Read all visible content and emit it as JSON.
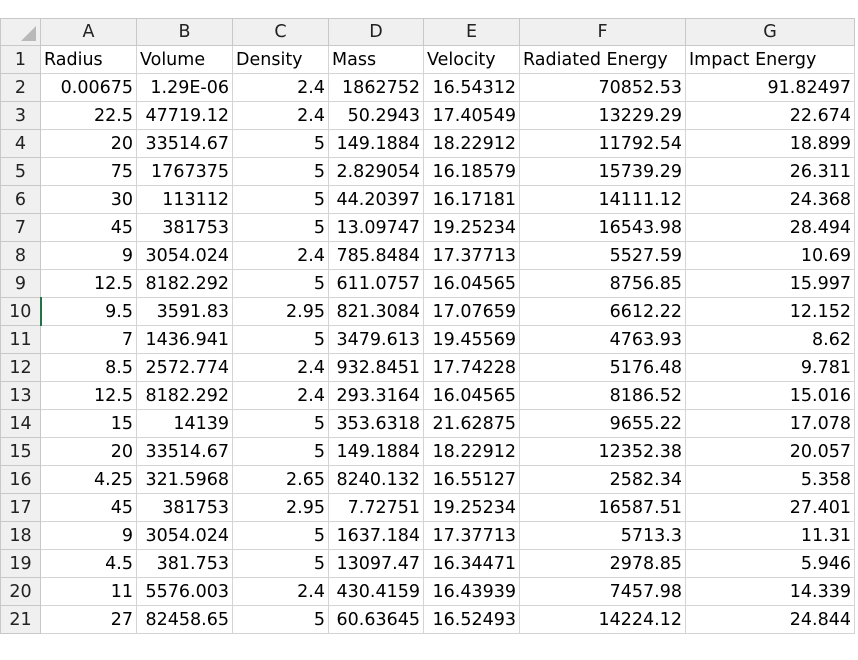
{
  "sheet": {
    "column_headers": [
      "A",
      "B",
      "C",
      "D",
      "E",
      "F",
      "G"
    ],
    "header_row": {
      "row": "1",
      "cells": [
        "Radius",
        "Volume",
        "Density",
        "Mass",
        "Velocity",
        "Radiated Energy",
        "Impact Energy"
      ]
    },
    "rows": [
      {
        "row": "2",
        "cells": [
          "0.00675",
          "1.29E-06",
          "2.4",
          "1862752",
          "16.54312",
          "70852.53",
          "91.82497"
        ]
      },
      {
        "row": "3",
        "cells": [
          "22.5",
          "47719.12",
          "2.4",
          "50.2943",
          "17.40549",
          "13229.29",
          "22.674"
        ]
      },
      {
        "row": "4",
        "cells": [
          "20",
          "33514.67",
          "5",
          "149.1884",
          "18.22912",
          "11792.54",
          "18.899"
        ]
      },
      {
        "row": "5",
        "cells": [
          "75",
          "1767375",
          "5",
          "2.829054",
          "16.18579",
          "15739.29",
          "26.311"
        ]
      },
      {
        "row": "6",
        "cells": [
          "30",
          "113112",
          "5",
          "44.20397",
          "16.17181",
          "14111.12",
          "24.368"
        ]
      },
      {
        "row": "7",
        "cells": [
          "45",
          "381753",
          "5",
          "13.09747",
          "19.25234",
          "16543.98",
          "28.494"
        ]
      },
      {
        "row": "8",
        "cells": [
          "9",
          "3054.024",
          "2.4",
          "785.8484",
          "17.37713",
          "5527.59",
          "10.69"
        ]
      },
      {
        "row": "9",
        "cells": [
          "12.5",
          "8182.292",
          "5",
          "611.0757",
          "16.04565",
          "8756.85",
          "15.997"
        ]
      },
      {
        "row": "10",
        "cells": [
          "9.5",
          "3591.83",
          "2.95",
          "821.3084",
          "17.07659",
          "6612.22",
          "12.152"
        ]
      },
      {
        "row": "11",
        "cells": [
          "7",
          "1436.941",
          "5",
          "3479.613",
          "19.45569",
          "4763.93",
          "8.62"
        ]
      },
      {
        "row": "12",
        "cells": [
          "8.5",
          "2572.774",
          "2.4",
          "932.8451",
          "17.74228",
          "5176.48",
          "9.781"
        ]
      },
      {
        "row": "13",
        "cells": [
          "12.5",
          "8182.292",
          "2.4",
          "293.3164",
          "16.04565",
          "8186.52",
          "15.016"
        ]
      },
      {
        "row": "14",
        "cells": [
          "15",
          "14139",
          "5",
          "353.6318",
          "21.62875",
          "9655.22",
          "17.078"
        ]
      },
      {
        "row": "15",
        "cells": [
          "20",
          "33514.67",
          "5",
          "149.1884",
          "18.22912",
          "12352.38",
          "20.057"
        ]
      },
      {
        "row": "16",
        "cells": [
          "4.25",
          "321.5968",
          "2.65",
          "8240.132",
          "16.55127",
          "2582.34",
          "5.358"
        ]
      },
      {
        "row": "17",
        "cells": [
          "45",
          "381753",
          "2.95",
          "7.72751",
          "19.25234",
          "16587.51",
          "27.401"
        ]
      },
      {
        "row": "18",
        "cells": [
          "9",
          "3054.024",
          "5",
          "1637.184",
          "17.37713",
          "5713.3",
          "11.31"
        ]
      },
      {
        "row": "19",
        "cells": [
          "4.5",
          "381.753",
          "5",
          "13097.47",
          "16.34471",
          "2978.85",
          "5.946"
        ]
      },
      {
        "row": "20",
        "cells": [
          "11",
          "5576.003",
          "2.4",
          "430.4159",
          "16.43939",
          "7457.98",
          "14.339"
        ]
      },
      {
        "row": "21",
        "cells": [
          "27",
          "82458.65",
          "5",
          "60.63645",
          "16.52493",
          "14224.12",
          "24.844"
        ]
      }
    ],
    "active_row": "10",
    "colors": {
      "header_bg": "#f0f0f0",
      "gridline": "#d4d4d4",
      "selection_accent": "#217346"
    }
  }
}
